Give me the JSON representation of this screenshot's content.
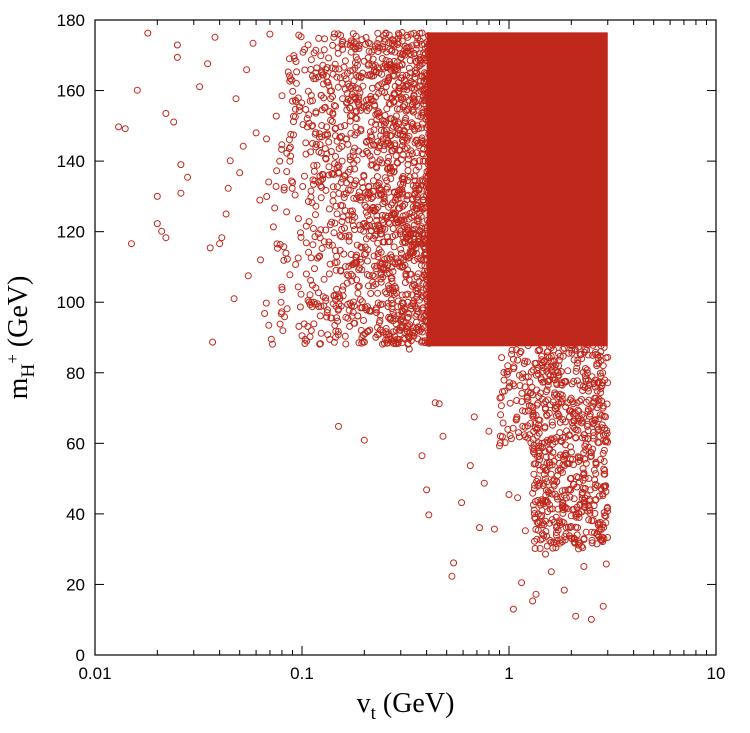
{
  "chart_data": {
    "type": "scatter",
    "title": "",
    "xlabel": {
      "main": "v",
      "sub": "t",
      "unit": " (GeV)"
    },
    "ylabel": {
      "main": "m",
      "sub": "H",
      "sup": "+",
      "unit": " (GeV)"
    },
    "xscale": "log",
    "xlim": [
      0.01,
      10
    ],
    "ylim": [
      0,
      180
    ],
    "xticks": [
      0.01,
      0.1,
      1,
      10
    ],
    "xtick_labels": [
      "0.01",
      "0.1",
      "1",
      "10"
    ],
    "yticks": [
      0,
      20,
      40,
      60,
      80,
      100,
      120,
      140,
      160,
      180
    ],
    "ytick_labels": [
      "0",
      "20",
      "40",
      "60",
      "80",
      "100",
      "120",
      "140",
      "160",
      "180"
    ],
    "grid": false,
    "legend": "none",
    "marker": {
      "shape": "open-circle",
      "color": "#c0281c"
    },
    "series": [
      {
        "points": [
          [
            0.013,
            149.7
          ],
          [
            0.014,
            149.2
          ],
          [
            0.015,
            116.6
          ],
          [
            0.016,
            160.1
          ],
          [
            0.018,
            176.3
          ],
          [
            0.02,
            122.3
          ],
          [
            0.02,
            130.0
          ],
          [
            0.021,
            120.1
          ],
          [
            0.022,
            118.3
          ],
          [
            0.022,
            153.5
          ],
          [
            0.024,
            151.1
          ],
          [
            0.025,
            169.4
          ],
          [
            0.025,
            172.9
          ],
          [
            0.026,
            130.9
          ],
          [
            0.026,
            139.0
          ],
          [
            0.028,
            135.4
          ],
          [
            0.032,
            161.1
          ],
          [
            0.035,
            167.6
          ],
          [
            0.036,
            115.4
          ],
          [
            0.037,
            88.7
          ],
          [
            0.038,
            175.1
          ],
          [
            0.04,
            116.6
          ],
          [
            0.041,
            118.3
          ],
          [
            0.043,
            125.0
          ],
          [
            0.044,
            132.3
          ],
          [
            0.045,
            140.1
          ],
          [
            0.047,
            101.0
          ],
          [
            0.048,
            157.7
          ],
          [
            0.05,
            136.7
          ],
          [
            0.052,
            144.2
          ],
          [
            0.054,
            165.9
          ],
          [
            0.055,
            107.5
          ],
          [
            0.058,
            173.4
          ],
          [
            0.06,
            148.0
          ],
          [
            0.063,
            112.0
          ],
          [
            0.066,
            96.8
          ],
          [
            0.07,
            176.0
          ],
          [
            0.072,
            88.1
          ],
          [
            0.075,
            132.8
          ],
          [
            0.08,
            104.3
          ],
          [
            0.09,
            157.0
          ],
          [
            0.1,
            90.5
          ],
          [
            0.11,
            142.6
          ],
          [
            0.12,
            119.4
          ],
          [
            0.13,
            101.2
          ],
          [
            0.15,
            64.8
          ],
          [
            0.2,
            60.9
          ],
          [
            0.25,
            88.4
          ],
          [
            0.29,
            98.7
          ],
          [
            0.33,
            86.7
          ],
          [
            0.38,
            56.5
          ],
          [
            0.4,
            46.8
          ],
          [
            0.41,
            39.7
          ],
          [
            0.44,
            71.5
          ],
          [
            0.46,
            71.2
          ],
          [
            0.48,
            62.0
          ],
          [
            0.54,
            26.1
          ],
          [
            0.53,
            22.3
          ],
          [
            0.59,
            43.2
          ],
          [
            0.65,
            53.7
          ],
          [
            0.68,
            67.5
          ],
          [
            0.72,
            36.1
          ],
          [
            0.76,
            48.7
          ],
          [
            0.8,
            63.4
          ],
          [
            0.85,
            35.7
          ],
          [
            0.9,
            59.3
          ],
          [
            0.95,
            74.8
          ],
          [
            1.0,
            45.5
          ],
          [
            1.05,
            13.0
          ],
          [
            1.1,
            44.6
          ],
          [
            1.15,
            20.5
          ],
          [
            1.2,
            35.2
          ],
          [
            1.3,
            15.3
          ],
          [
            1.35,
            17.2
          ],
          [
            1.45,
            58.8
          ],
          [
            1.5,
            28.6
          ],
          [
            1.6,
            23.6
          ],
          [
            1.7,
            49.2
          ],
          [
            1.85,
            18.4
          ],
          [
            2.0,
            33.1
          ],
          [
            2.1,
            11.0
          ],
          [
            2.2,
            42.7
          ],
          [
            2.3,
            25.1
          ],
          [
            2.5,
            10.1
          ],
          [
            2.7,
            37.4
          ],
          [
            2.85,
            13.8
          ],
          [
            2.9,
            52.3
          ],
          [
            2.95,
            25.8
          ]
        ]
      }
    ],
    "dense_region": {
      "x_range": [
        0.4,
        3.0
      ],
      "y_range": [
        87.5,
        176.5
      ]
    }
  }
}
